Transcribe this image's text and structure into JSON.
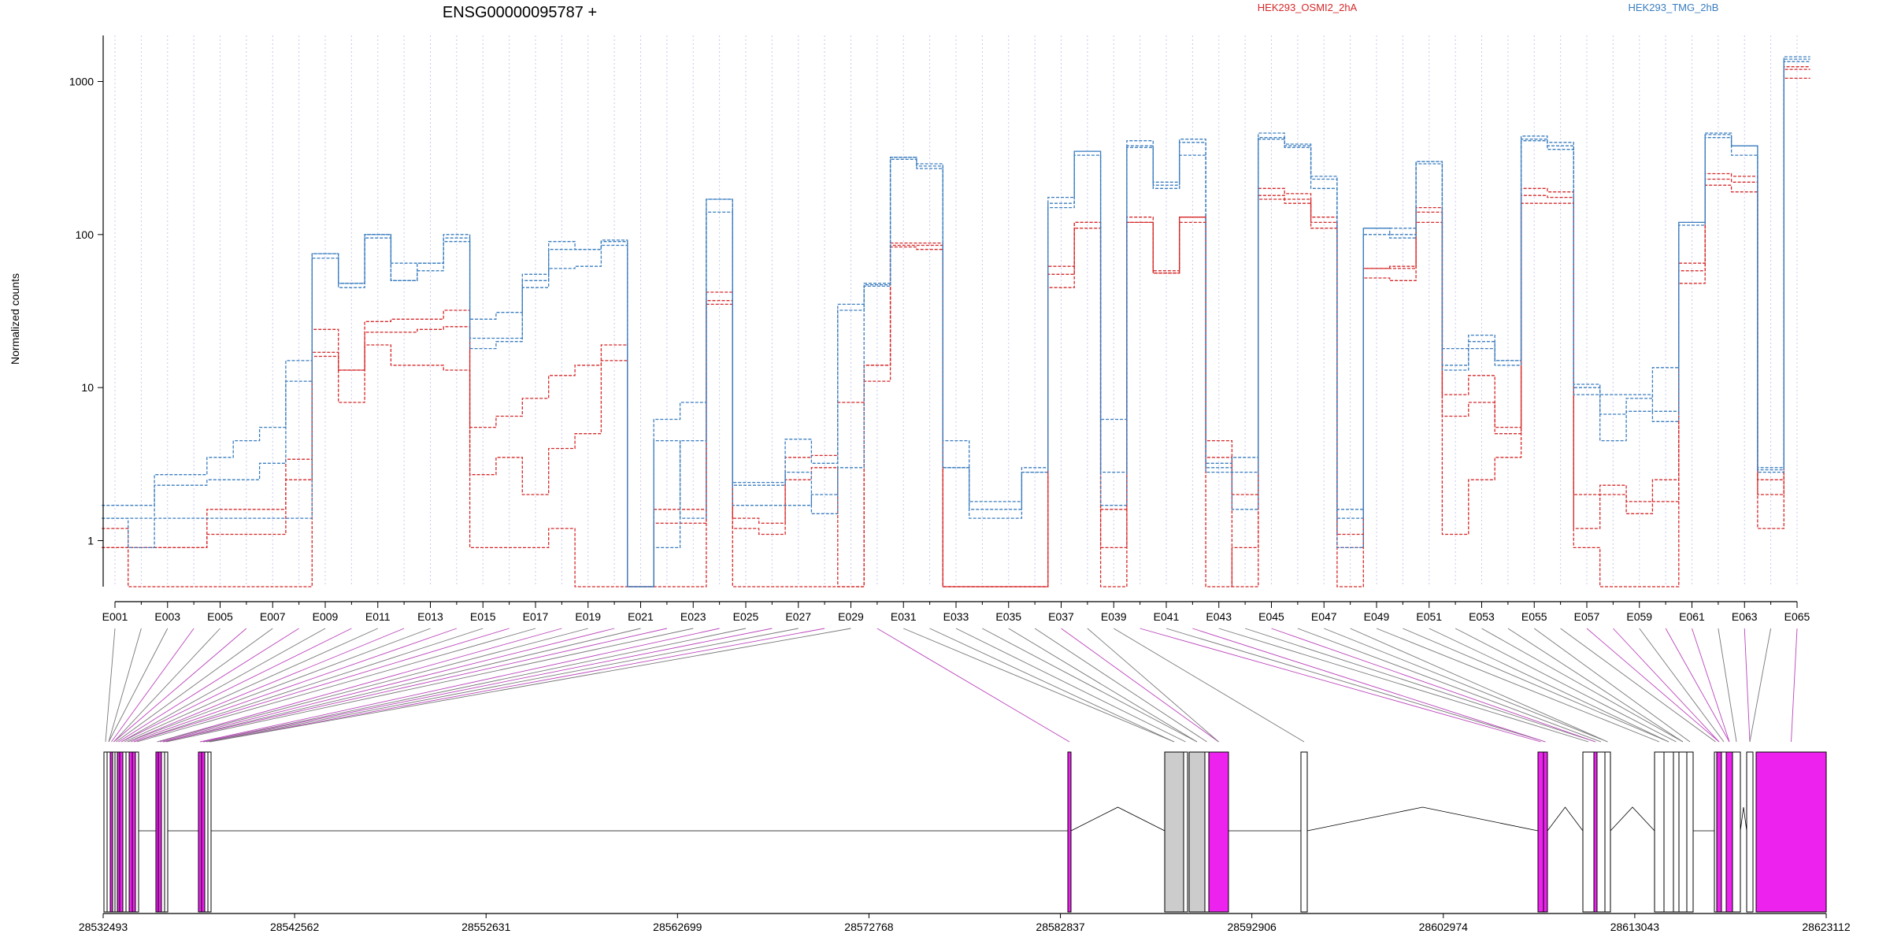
{
  "title": "ENSG00000095787 +",
  "ylabel": "Normalized counts",
  "legend": [
    {
      "label": "HEK293_OSMI2_2hA",
      "color": "#d62728"
    },
    {
      "label": "HEK293_TMG_2hB",
      "color": "#3a7dbf"
    }
  ],
  "colors": {
    "highlight": "#ee22ee",
    "gray_exon": "#cccccc",
    "connector_gray": "#777777",
    "connector_pink": "#bb44bb",
    "grid": "#c8c8f0"
  },
  "chart_data": {
    "type": "line",
    "title": "ENSG00000095787 +",
    "ylabel": "Normalized counts",
    "y_scale": "log",
    "ylim": [
      0.5,
      2000
    ],
    "y_ticks": [
      1,
      10,
      100,
      1000
    ],
    "y_tick_labels": [
      "1",
      "10",
      "100",
      "1000"
    ],
    "categories": [
      "E001",
      "E002",
      "E003",
      "E004",
      "E005",
      "E006",
      "E007",
      "E008",
      "E009",
      "E010",
      "E011",
      "E012",
      "E013",
      "E014",
      "E015",
      "E016",
      "E017",
      "E018",
      "E019",
      "E020",
      "E021",
      "E022",
      "E023",
      "E024",
      "E025",
      "E026",
      "E027",
      "E028",
      "E029",
      "E030",
      "E031",
      "E032",
      "E033",
      "E034",
      "E035",
      "E036",
      "E037",
      "E038",
      "E039",
      "E040",
      "E041",
      "E042",
      "E043",
      "E044",
      "E045",
      "E046",
      "E047",
      "E048",
      "E049",
      "E050",
      "E051",
      "E052",
      "E053",
      "E054",
      "E055",
      "E056",
      "E057",
      "E058",
      "E059",
      "E060",
      "E061",
      "E062",
      "E063",
      "E064",
      "E065"
    ],
    "x_tick_labels": [
      "E001",
      "E003",
      "E005",
      "E007",
      "E009",
      "E011",
      "E013",
      "E015",
      "E017",
      "E019",
      "E021",
      "E023",
      "E025",
      "E027",
      "E029",
      "E031",
      "E033",
      "E035",
      "E037",
      "E039",
      "E041",
      "E043",
      "E045",
      "E047",
      "E049",
      "E051",
      "E053",
      "E055",
      "E057",
      "E059",
      "E061",
      "E063",
      "E065"
    ],
    "highlighted_exons": [
      "E004",
      "E006",
      "E008",
      "E010",
      "E012",
      "E014",
      "E016",
      "E018",
      "E020",
      "E022",
      "E024",
      "E026",
      "E028",
      "E030",
      "E037",
      "E040",
      "E042",
      "E045",
      "E057",
      "E058",
      "E060",
      "E061",
      "E063",
      "E065"
    ],
    "series": [
      {
        "name": "HEK293_OSMI2_2hA",
        "color": "#d62728",
        "values": [
          1.2,
          0.5,
          0.5,
          0.5,
          0.5,
          0.5,
          0.5,
          0.5,
          16,
          8,
          19,
          14,
          14,
          13,
          0.9,
          0.9,
          0.9,
          1.2,
          0.5,
          0.5,
          0.5,
          0.5,
          0.5,
          37,
          0.5,
          0.5,
          0.5,
          0.5,
          0.5,
          11,
          83,
          80,
          0.5,
          0.5,
          0.5,
          0.5,
          45,
          110,
          0.9,
          120,
          56,
          120,
          0.5,
          0.9,
          170,
          160,
          110,
          0.9,
          52,
          50,
          120,
          1.1,
          2.5,
          3.5,
          160,
          160,
          0.9,
          0.5,
          0.5,
          0.5,
          48,
          210,
          190,
          1.2,
          1050
        ]
      },
      {
        "name": "HEK293_OSMI2_2hA",
        "color": "#d62728",
        "values": [
          0.9,
          0.9,
          0.9,
          0.9,
          1.1,
          1.1,
          1.1,
          2.5,
          17,
          13,
          23,
          23,
          24,
          25,
          2.7,
          3.5,
          2,
          4,
          5,
          15,
          0.5,
          1.3,
          1.3,
          35,
          1.4,
          1.3,
          2.5,
          3,
          0.5,
          14,
          88,
          88,
          0.5,
          0.5,
          0.5,
          0.5,
          55,
          120,
          0.5,
          120,
          58,
          130,
          4.5,
          0.5,
          200,
          185,
          120,
          1.1,
          60,
          60,
          140,
          6.5,
          8,
          5.5,
          180,
          175,
          2,
          2.3,
          1.5,
          1.8,
          58,
          230,
          220,
          2,
          1250
        ]
      },
      {
        "name": "HEK293_OSMI2_2hA",
        "color": "#d62728",
        "values": [
          0.9,
          0.9,
          0.9,
          0.9,
          1.6,
          1.6,
          1.6,
          3.4,
          24,
          13,
          27,
          28,
          28,
          32,
          5.5,
          6.5,
          8.5,
          12,
          14,
          19,
          0.5,
          1.6,
          1.6,
          42,
          1.2,
          1.1,
          3.5,
          3.6,
          8,
          14,
          85,
          85,
          0.5,
          0.5,
          0.5,
          0.5,
          62,
          120,
          1.6,
          130,
          56,
          130,
          3.5,
          2,
          180,
          170,
          130,
          0.5,
          60,
          62,
          150,
          9,
          12,
          5,
          200,
          190,
          1.2,
          2,
          1.8,
          2.5,
          65,
          250,
          240,
          2.5,
          1200
        ]
      },
      {
        "name": "HEK293_TMG_2hB",
        "color": "#3a7dbf",
        "values": [
          1.7,
          1.7,
          2.3,
          2.3,
          2.5,
          2.5,
          3.2,
          11,
          75,
          48,
          100,
          65,
          65,
          95,
          21,
          21,
          45,
          60,
          62,
          85,
          0.5,
          0.9,
          4.5,
          140,
          1.7,
          1.7,
          1.7,
          2,
          3,
          48,
          320,
          290,
          3,
          1.8,
          1.8,
          2.8,
          160,
          330,
          1.7,
          370,
          200,
          330,
          3,
          1.6,
          420,
          390,
          230,
          1.6,
          100,
          95,
          290,
          18,
          22,
          14,
          410,
          380,
          10,
          4.5,
          7,
          6,
          115,
          430,
          380,
          3,
          1450
        ]
      },
      {
        "name": "HEK293_TMG_2hB",
        "color": "#3a7dbf",
        "values": [
          1.4,
          0.9,
          2.7,
          2.7,
          3.5,
          4.5,
          5.5,
          15,
          70,
          45,
          95,
          50,
          58,
          90,
          18,
          20,
          50,
          80,
          80,
          92,
          0.5,
          6.2,
          8,
          170,
          2.4,
          2.4,
          4.6,
          3.2,
          35,
          47,
          310,
          270,
          4.5,
          1.6,
          1.6,
          3,
          175,
          350,
          6.2,
          410,
          210,
          420,
          3.2,
          3.5,
          460,
          380,
          240,
          0.9,
          110,
          110,
          300,
          14,
          18,
          15,
          440,
          400,
          10.5,
          6.7,
          8.5,
          13.5,
          120,
          460,
          380,
          2.9,
          1400
        ]
      },
      {
        "name": "HEK293_TMG_2hB",
        "color": "#3a7dbf",
        "values": [
          1.4,
          1.4,
          1.4,
          1.4,
          1.4,
          1.4,
          1.4,
          1.4,
          75,
          48,
          100,
          50,
          65,
          100,
          28,
          31,
          55,
          90,
          80,
          90,
          0.5,
          4.5,
          1.4,
          170,
          2.3,
          2.3,
          2.8,
          1.5,
          32,
          46,
          320,
          280,
          3,
          1.4,
          1.4,
          2.8,
          150,
          350,
          2.8,
          380,
          220,
          400,
          2.8,
          2.8,
          430,
          370,
          200,
          1.4,
          110,
          100,
          300,
          13,
          20,
          15,
          420,
          360,
          9,
          9,
          9,
          7,
          120,
          450,
          330,
          2.8,
          1350
        ]
      }
    ]
  },
  "gene_model": {
    "coordinate_labels": [
      "28532493",
      "28542562",
      "28552631",
      "28562699",
      "28572768",
      "28582837",
      "28592906",
      "28602974",
      "28613043",
      "28623112"
    ]
  }
}
